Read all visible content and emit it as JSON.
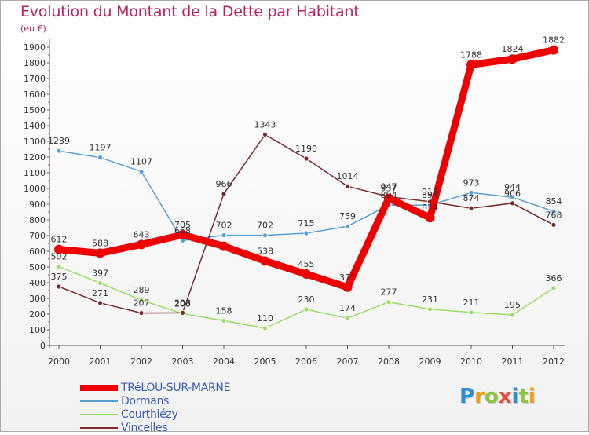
{
  "title": "Evolution du Montant de la Dette par Habitant",
  "subtitle": "(en €)",
  "logo": {
    "text": "Proxiti",
    "letter_colors": [
      "#2b8fd3",
      "#f39c12",
      "#8cc63f",
      "#e74c3c",
      "#2b8fd3",
      "#8cc63f",
      "#f39c12"
    ]
  },
  "chart_data": {
    "type": "line",
    "title": "Evolution du Montant de la Dette par Habitant",
    "subtitle": "(en €)",
    "xlabel": "",
    "ylabel": "",
    "x": [
      "2000",
      "2001",
      "2002",
      "2003",
      "2004",
      "2005",
      "2006",
      "2007",
      "2008",
      "2009",
      "2010",
      "2011",
      "2012"
    ],
    "ylim": [
      0,
      1900
    ],
    "yticks": [
      0,
      100,
      200,
      300,
      400,
      500,
      600,
      700,
      800,
      900,
      1000,
      1100,
      1200,
      1300,
      1400,
      1500,
      1600,
      1700,
      1800,
      1900
    ],
    "grid": false,
    "legend_position": "bottom-left",
    "series": [
      {
        "name": "TRéLOU-SUR-MARNE",
        "color": "#ee0000",
        "values": [
          612,
          588,
          643,
          705,
          632,
          538,
          455,
          371,
          937,
          814,
          1788,
          1824,
          1882
        ],
        "labels": [
          "612",
          "588",
          "643",
          "705",
          "",
          "538",
          "455",
          "371",
          "937",
          "814",
          "1788",
          "1824",
          "1882"
        ]
      },
      {
        "name": "Dormans",
        "color": "#5a9fd4",
        "values": [
          1239,
          1197,
          1107,
          668,
          702,
          702,
          715,
          759,
          894,
          894,
          973,
          944,
          854
        ],
        "labels": [
          "1239",
          "1197",
          "1107",
          "668",
          "702",
          "702",
          "715",
          "759",
          "894",
          "894",
          "973",
          "944",
          "854"
        ]
      },
      {
        "name": "Courthiézy",
        "color": "#99dd66",
        "values": [
          502,
          397,
          289,
          203,
          158,
          110,
          230,
          174,
          277,
          231,
          211,
          195,
          366
        ],
        "labels": [
          "502",
          "397",
          "289",
          "203",
          "158",
          "110",
          "230",
          "174",
          "277",
          "231",
          "211",
          "195",
          "366"
        ]
      },
      {
        "name": "Vincelles",
        "color": "#7a2a2a",
        "values": [
          375,
          271,
          207,
          208,
          966,
          1343,
          1190,
          1014,
          947,
          916,
          874,
          906,
          768
        ],
        "labels": [
          "375",
          "271",
          "207",
          "208",
          "966",
          "1343",
          "1190",
          "1014",
          "947",
          "916",
          "874",
          "906",
          "768"
        ]
      }
    ]
  }
}
